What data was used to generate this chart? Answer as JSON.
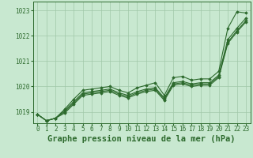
{
  "title": "Graphe pression niveau de la mer (hPa)",
  "x_labels": [
    "0",
    "1",
    "2",
    "3",
    "4",
    "5",
    "6",
    "7",
    "8",
    "9",
    "10",
    "11",
    "12",
    "13",
    "14",
    "15",
    "16",
    "17",
    "18",
    "19",
    "20",
    "21",
    "22",
    "23"
  ],
  "ylim": [
    1018.55,
    1023.35
  ],
  "yticks": [
    1019,
    1020,
    1021,
    1022,
    1023
  ],
  "xlim": [
    -0.5,
    23.5
  ],
  "background_color": "#c8e8d0",
  "grid_color": "#a0c8a8",
  "line_color": "#2d6a2d",
  "series": [
    [
      1018.9,
      1018.65,
      1018.75,
      1019.1,
      1019.5,
      1019.85,
      1019.9,
      1019.95,
      1020.0,
      1019.85,
      1019.75,
      1019.95,
      1020.05,
      1020.15,
      1019.65,
      1020.35,
      1020.4,
      1020.25,
      1020.3,
      1020.3,
      1020.6,
      1022.3,
      1022.95,
      1022.9
    ],
    [
      1018.9,
      1018.65,
      1018.75,
      1019.05,
      1019.4,
      1019.75,
      1019.8,
      1019.85,
      1019.9,
      1019.75,
      1019.65,
      1019.8,
      1019.9,
      1019.95,
      1019.55,
      1020.15,
      1020.2,
      1020.1,
      1020.15,
      1020.15,
      1020.45,
      1021.85,
      1022.3,
      1022.7
    ],
    [
      1018.9,
      1018.65,
      1018.75,
      1019.0,
      1019.35,
      1019.7,
      1019.75,
      1019.8,
      1019.85,
      1019.7,
      1019.6,
      1019.75,
      1019.85,
      1019.9,
      1019.5,
      1020.1,
      1020.15,
      1020.05,
      1020.1,
      1020.1,
      1020.4,
      1021.75,
      1022.2,
      1022.6
    ],
    [
      1018.9,
      1018.65,
      1018.75,
      1018.95,
      1019.3,
      1019.65,
      1019.7,
      1019.75,
      1019.8,
      1019.65,
      1019.55,
      1019.7,
      1019.8,
      1019.85,
      1019.45,
      1020.05,
      1020.1,
      1020.0,
      1020.05,
      1020.05,
      1020.35,
      1021.7,
      1022.15,
      1022.55
    ]
  ],
  "marker": "D",
  "marker_size": 1.8,
  "linewidth": 0.8,
  "title_fontsize": 7.5,
  "tick_fontsize": 5.5,
  "fig_width": 3.2,
  "fig_height": 2.0,
  "dpi": 100
}
